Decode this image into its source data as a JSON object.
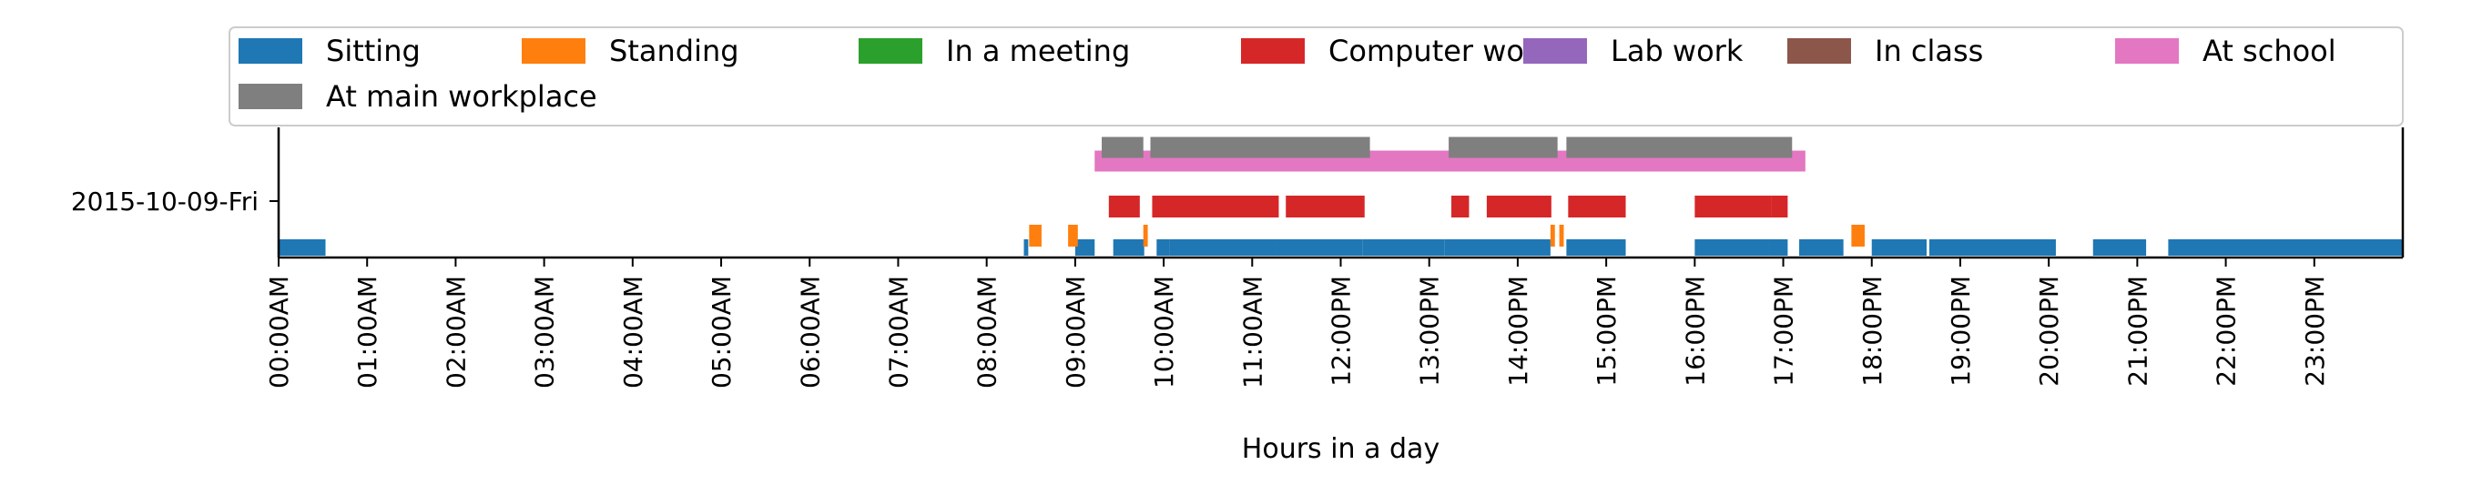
{
  "chart_data": {
    "type": "timeline",
    "xlabel": "Hours in a day",
    "ylabel": "",
    "xlim": [
      0,
      24
    ],
    "y_categories": [
      "2015-10-09-Fri"
    ],
    "x_ticks": [
      {
        "value": 0,
        "label": "00:00AM"
      },
      {
        "value": 1,
        "label": "01:00AM"
      },
      {
        "value": 2,
        "label": "02:00AM"
      },
      {
        "value": 3,
        "label": "03:00AM"
      },
      {
        "value": 4,
        "label": "04:00AM"
      },
      {
        "value": 5,
        "label": "05:00AM"
      },
      {
        "value": 6,
        "label": "06:00AM"
      },
      {
        "value": 7,
        "label": "07:00AM"
      },
      {
        "value": 8,
        "label": "08:00AM"
      },
      {
        "value": 9,
        "label": "09:00AM"
      },
      {
        "value": 10,
        "label": "10:00AM"
      },
      {
        "value": 11,
        "label": "11:00AM"
      },
      {
        "value": 12,
        "label": "12:00PM"
      },
      {
        "value": 13,
        "label": "13:00PM"
      },
      {
        "value": 14,
        "label": "14:00PM"
      },
      {
        "value": 15,
        "label": "15:00PM"
      },
      {
        "value": 16,
        "label": "16:00PM"
      },
      {
        "value": 17,
        "label": "17:00PM"
      },
      {
        "value": 18,
        "label": "18:00PM"
      },
      {
        "value": 19,
        "label": "19:00PM"
      },
      {
        "value": 20,
        "label": "20:00PM"
      },
      {
        "value": 21,
        "label": "21:00PM"
      },
      {
        "value": 22,
        "label": "22:00PM"
      },
      {
        "value": 23,
        "label": "23:00PM"
      }
    ],
    "legend_position": "top, across two rows",
    "series": [
      {
        "name": "Sitting",
        "color": "#1f77b4",
        "intervals": [
          [
            0.0,
            0.53
          ],
          [
            8.42,
            8.47
          ],
          [
            9.0,
            9.22
          ],
          [
            9.43,
            9.78
          ],
          [
            9.92,
            10.07
          ],
          [
            10.07,
            11.28
          ],
          [
            11.28,
            12.25
          ],
          [
            12.25,
            13.17
          ],
          [
            13.17,
            14.37
          ],
          [
            14.55,
            15.22
          ],
          [
            16.0,
            16.83
          ],
          [
            16.83,
            17.05
          ],
          [
            17.18,
            17.68
          ],
          [
            18.0,
            18.62
          ],
          [
            18.65,
            20.08
          ],
          [
            20.5,
            21.1
          ],
          [
            21.35,
            24.0
          ]
        ]
      },
      {
        "name": "Standing",
        "color": "#ff7f0e",
        "intervals": [
          [
            8.48,
            8.62
          ],
          [
            8.92,
            9.03
          ],
          [
            9.77,
            9.82
          ],
          [
            14.37,
            14.42
          ],
          [
            14.47,
            14.52
          ],
          [
            17.77,
            17.92
          ]
        ]
      },
      {
        "name": "In a meeting",
        "color": "#2ca02c",
        "intervals": []
      },
      {
        "name": "Computer work",
        "color": "#d62728",
        "intervals": [
          [
            9.38,
            9.73
          ],
          [
            9.87,
            11.3
          ],
          [
            11.38,
            12.27
          ],
          [
            13.25,
            13.45
          ],
          [
            13.65,
            14.38
          ],
          [
            14.57,
            15.22
          ],
          [
            16.0,
            16.87
          ],
          [
            16.87,
            17.05
          ]
        ]
      },
      {
        "name": "Lab work",
        "color": "#9467bd",
        "intervals": []
      },
      {
        "name": "In class",
        "color": "#8c564b",
        "intervals": []
      },
      {
        "name": "At school",
        "color": "#e377c2",
        "intervals": [
          [
            9.22,
            17.25
          ]
        ]
      },
      {
        "name": "At main workplace",
        "color": "#7f7f7f",
        "intervals": [
          [
            9.3,
            9.77
          ],
          [
            9.85,
            12.33
          ],
          [
            13.22,
            14.45
          ],
          [
            14.55,
            17.1
          ]
        ]
      }
    ]
  }
}
